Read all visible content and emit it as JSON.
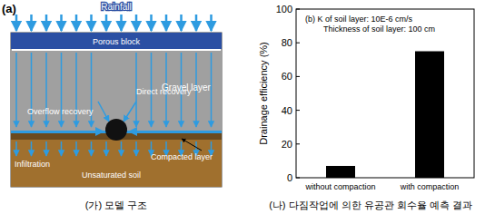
{
  "chart_data": {
    "type": "bar",
    "title": "(b) K of soil layer: 10E-6 cm/s",
    "subtitle": "Thickness of soil layer: 100 cm",
    "ylabel": "Drainage efficiency (%)",
    "categories": [
      "without compaction",
      "with compaction"
    ],
    "values": [
      7,
      75
    ],
    "color": "#000000",
    "ylim": [
      0,
      100
    ],
    "yticks": [
      0,
      20,
      40,
      60,
      80,
      100
    ],
    "grid": false
  },
  "diagram": {
    "panel": "(a)",
    "labels": {
      "rainfall": "Rainfall",
      "porous_block": "Porous block",
      "gravel_layer": "Gravel layer",
      "direct_recovery": "Direct recovery",
      "overflow_recovery": "Overflow recovery",
      "infiltration": "Infiltration",
      "unsaturated_soil": "Unsaturated soil",
      "compacted_layer": "Compacted layer"
    }
  },
  "captions": [
    "(가) 모델 구조",
    "(나) 다짐작업에 의한 유공관 회수율 예측 결과"
  ]
}
